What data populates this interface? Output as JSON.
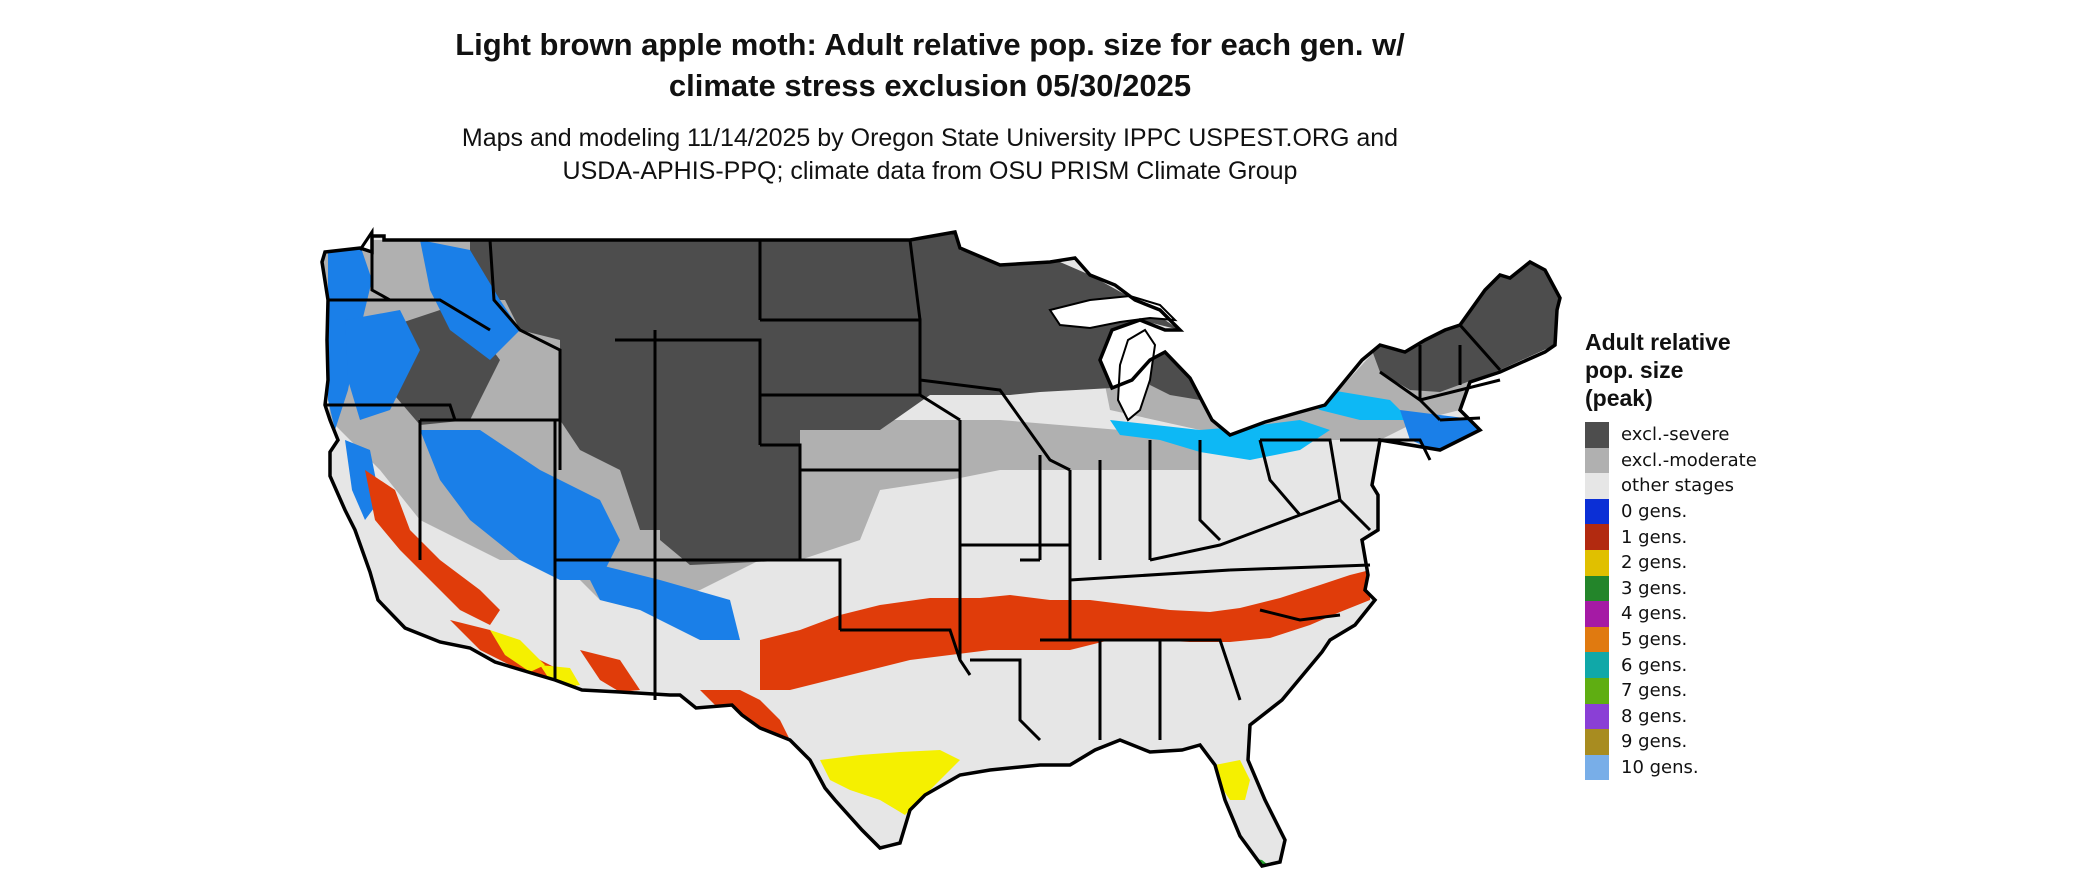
{
  "title": {
    "line1": "Light brown apple moth: Adult relative pop. size for each gen. w/",
    "line2": "climate stress exclusion 05/30/2025"
  },
  "subtitle": {
    "line1": "Maps and modeling 11/14/2025 by Oregon State University IPPC USPEST.ORG and",
    "line2": "USDA-APHIS-PPQ; climate data from OSU PRISM Climate Group"
  },
  "legend": {
    "title": "Adult relative\npop. size\n(peak)",
    "items": [
      {
        "label": "excl.-severe",
        "color": "#4d4d4d"
      },
      {
        "label": "excl.-moderate",
        "color": "#b0b0b0"
      },
      {
        "label": "other stages",
        "color": "#e6e6e6"
      },
      {
        "label": "0 gens.",
        "color": "#0b2fd6"
      },
      {
        "label": "1 gens.",
        "color": "#b22a10"
      },
      {
        "label": "2 gens.",
        "color": "#e0c000"
      },
      {
        "label": "3 gens.",
        "color": "#23852a"
      },
      {
        "label": "4 gens.",
        "color": "#a51aa5"
      },
      {
        "label": "5 gens.",
        "color": "#e07a10"
      },
      {
        "label": "6 gens.",
        "color": "#10a8a8"
      },
      {
        "label": "7 gens.",
        "color": "#5fae12"
      },
      {
        "label": "8 gens.",
        "color": "#8a3fd6"
      },
      {
        "label": "9 gens.",
        "color": "#a88c20"
      },
      {
        "label": "10 gens.",
        "color": "#78aee8"
      }
    ]
  },
  "map": {
    "region": "Contiguous United States",
    "colors": {
      "severe": "#4d4d4d",
      "moderate": "#b0b0b0",
      "other": "#e6e6e6",
      "blue": "#1a7fe8",
      "cyan": "#0db8f5",
      "red": "#e03c0a",
      "yellow": "#f5f000",
      "green": "#23a02a",
      "border": "#000000",
      "water": "#ffffff"
    }
  }
}
